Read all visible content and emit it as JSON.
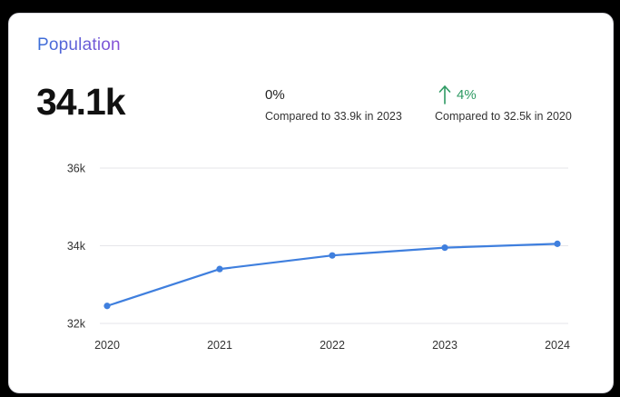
{
  "card": {
    "title": "Population",
    "value": "34.1k"
  },
  "comparisons": [
    {
      "change": "0%",
      "description": "Compared to 33.9k in 2023",
      "trend": "flat"
    },
    {
      "change": "4%",
      "description": "Compared to 32.5k in 2020",
      "trend": "up",
      "icon": "arrow-up-icon"
    }
  ],
  "colors": {
    "title_gradient_start": "#3a6fd8",
    "title_gradient_end": "#8a4fd6",
    "line": "#3f7fde",
    "positive": "#2e9a63",
    "grid": "#e6e6ea"
  },
  "chart_data": {
    "type": "line",
    "x": [
      "2020",
      "2021",
      "2022",
      "2023",
      "2024"
    ],
    "series": [
      {
        "values": [
          32.45,
          33.4,
          33.75,
          33.95,
          34.05
        ]
      }
    ],
    "y_ticks": [
      "32k",
      "34k",
      "36k"
    ],
    "ylim": [
      32,
      36
    ],
    "grid": true,
    "title": "",
    "xlabel": "",
    "ylabel": ""
  }
}
